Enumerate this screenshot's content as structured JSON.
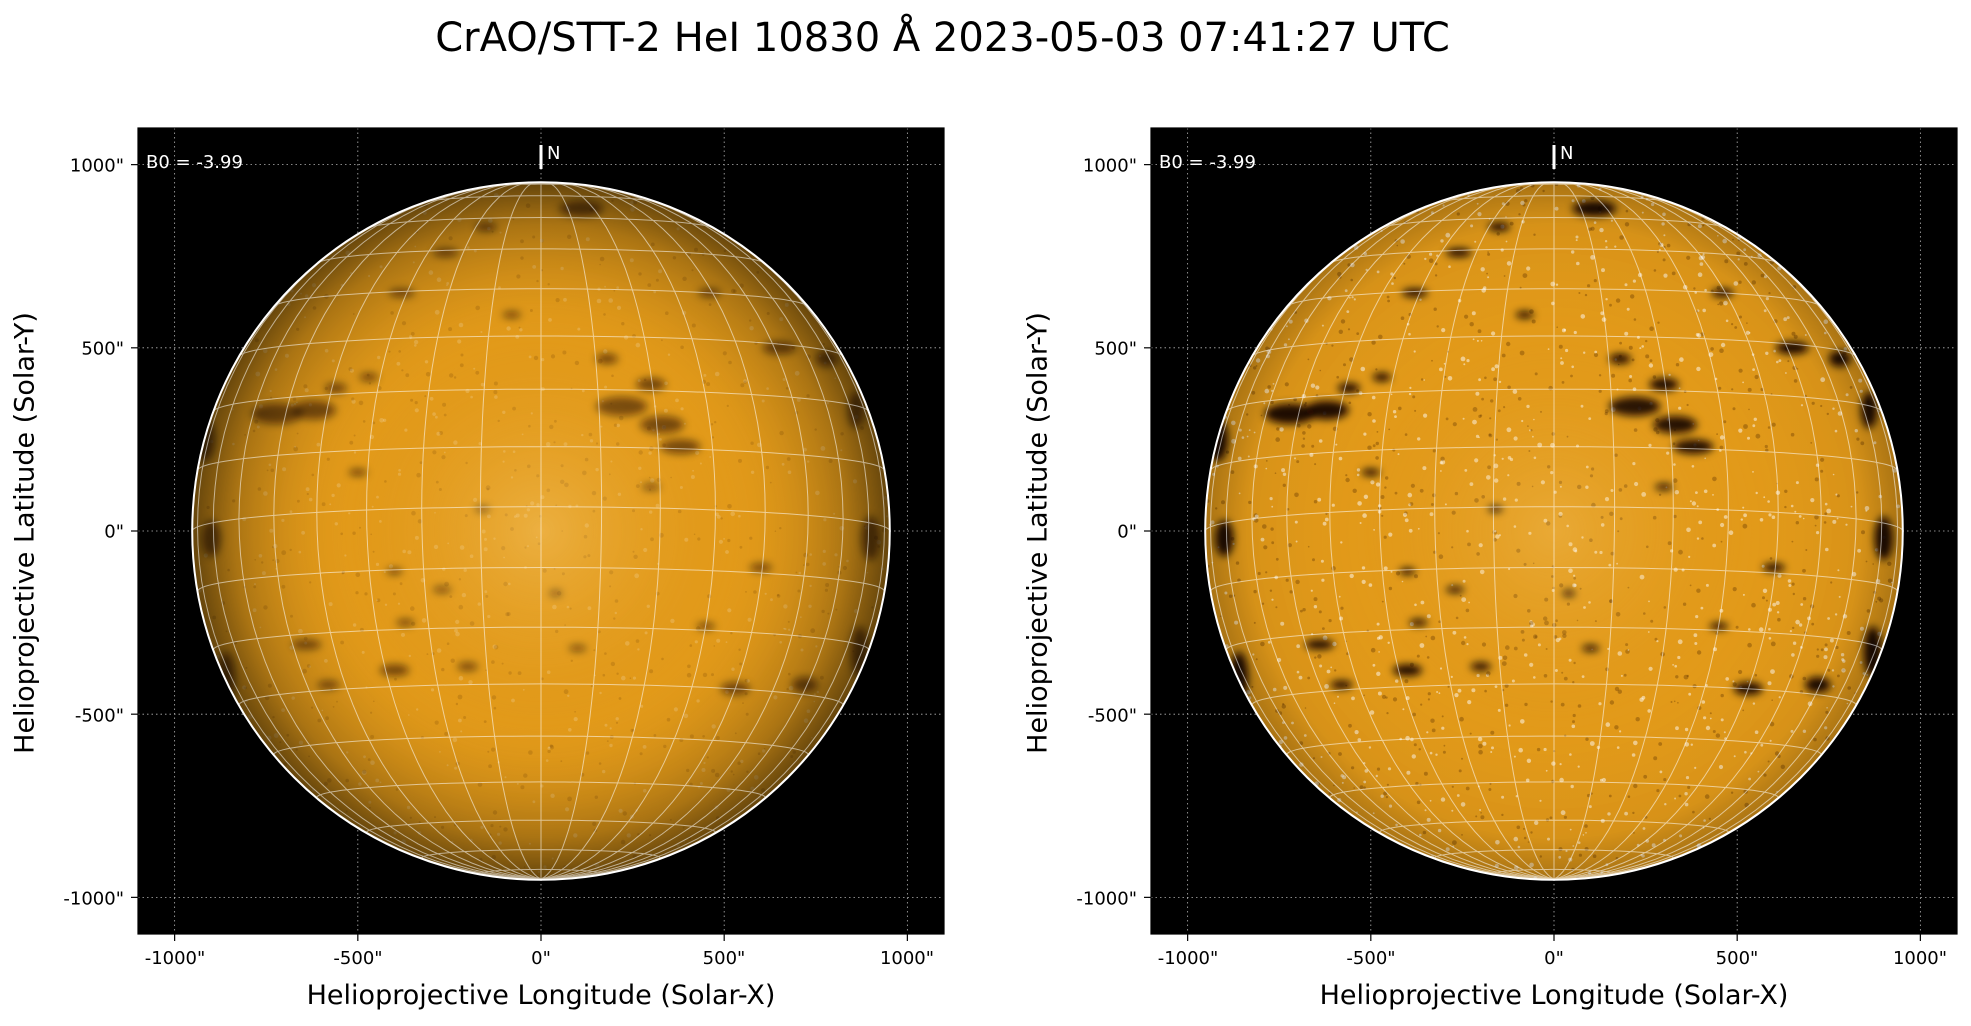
{
  "title": "CrAO/STT-2 HeI 10830 Å 2023-05-03 07:41:27 UTC",
  "colors": {
    "disk_base": "#e29a1a",
    "disk_bright": "#ffd98a",
    "dark_feature": "#120700",
    "background": "#000000",
    "grid": "#ffffff"
  },
  "axes": {
    "xlabel": "Helioprojective Longitude (Solar-X)",
    "ylabel": "Helioprojective Latitude (Solar-Y)",
    "xlim": [
      -1100,
      1100
    ],
    "ylim": [
      -1100,
      1100
    ],
    "x_ticks": [
      -1000,
      -500,
      0,
      500,
      1000
    ],
    "y_ticks": [
      1000,
      500,
      0,
      -500,
      -1000
    ],
    "x_tick_labels": [
      "-1000\"",
      "-500\"",
      "0\"",
      "500\"",
      "1000\""
    ],
    "y_tick_labels": [
      "1000\"",
      "500\"",
      "0\"",
      "-500\"",
      "-1000\""
    ],
    "solar_radius_arcsec": 952
  },
  "panels": [
    {
      "b0_label": "B0 = -3.99",
      "north_label": "N",
      "contrast": "normal",
      "b0_value": -3.99
    },
    {
      "b0_label": "B0 = -3.99",
      "north_label": "N",
      "contrast": "enhanced",
      "b0_value": -3.99
    }
  ]
}
